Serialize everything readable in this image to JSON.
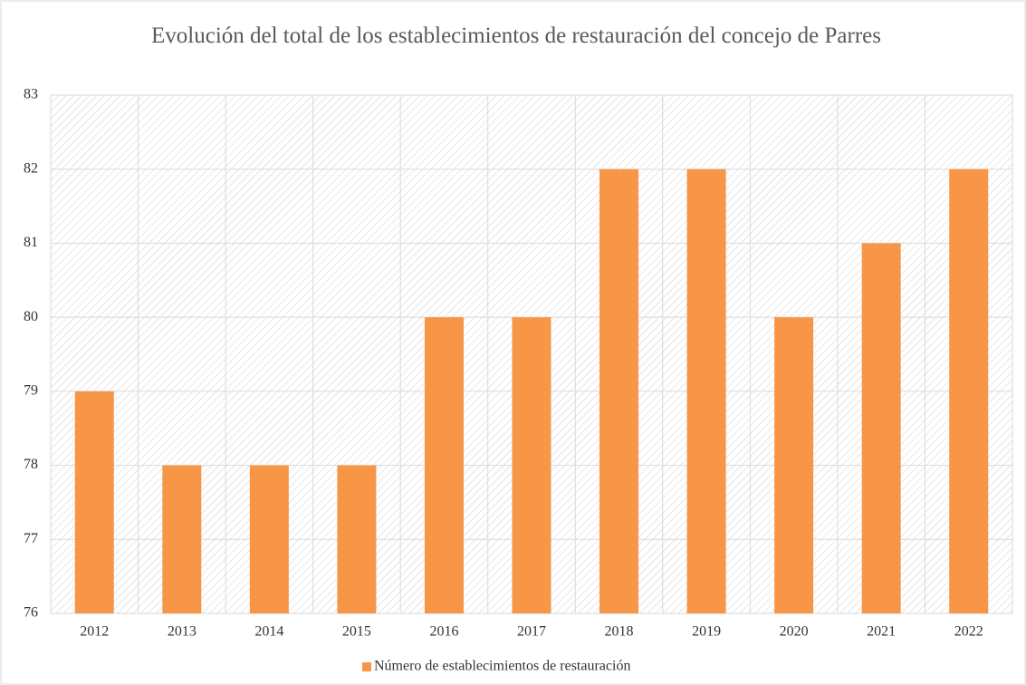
{
  "chart_data": {
    "type": "bar",
    "title": "Evolución del total de los establecimientos de restauración del concejo de Parres",
    "categories": [
      "2012",
      "2013",
      "2014",
      "2015",
      "2016",
      "2017",
      "2018",
      "2019",
      "2020",
      "2021",
      "2022"
    ],
    "series": [
      {
        "name": "Número de establecimientos de restauración",
        "color": "#f79646",
        "values": [
          79,
          78,
          78,
          78,
          80,
          80,
          82,
          82,
          80,
          81,
          82
        ]
      }
    ],
    "ylim": [
      76,
      83
    ],
    "yticks": [
      76,
      77,
      78,
      79,
      80,
      81,
      82,
      83
    ],
    "grid": true,
    "legend": "bottom"
  }
}
